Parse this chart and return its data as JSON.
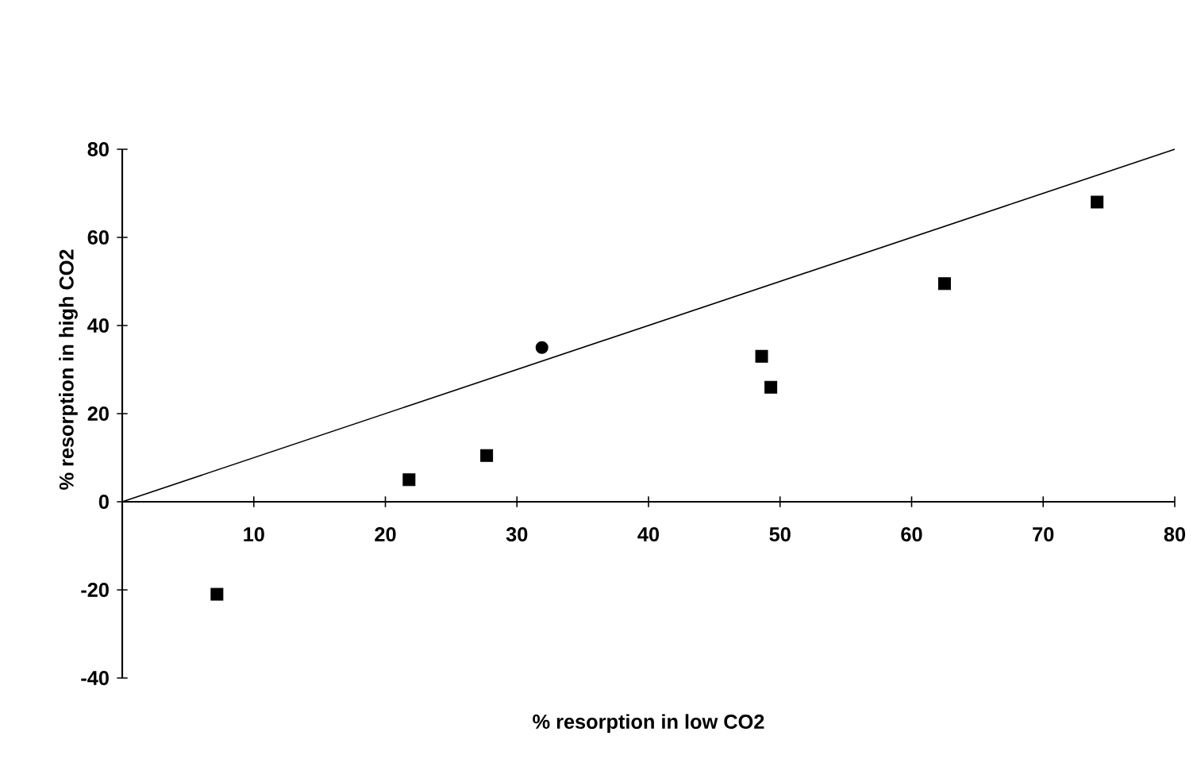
{
  "chart_data": {
    "type": "scatter",
    "xlabel": "% resorption in low CO2",
    "ylabel": "% resorption in high CO2",
    "xlim": [
      0,
      80
    ],
    "ylim": [
      -40,
      80
    ],
    "xticks": [
      10,
      20,
      30,
      40,
      50,
      60,
      70,
      80
    ],
    "yticks": [
      -40,
      -20,
      0,
      20,
      40,
      60,
      80
    ],
    "series": [
      {
        "marker": "square",
        "color": "#000000",
        "x": [
          7.2,
          21.8,
          27.7,
          48.6,
          49.3,
          62.5,
          74.1
        ],
        "values": [
          -21,
          5,
          10.5,
          33,
          26,
          49.5,
          68
        ]
      },
      {
        "marker": "circle",
        "color": "#000000",
        "x": [
          31.9
        ],
        "values": [
          35
        ]
      },
      {
        "type": "line",
        "marker": "none",
        "line_style": "solid",
        "color": "#000000",
        "x": [
          0,
          80
        ],
        "values": [
          0,
          80
        ]
      }
    ]
  }
}
